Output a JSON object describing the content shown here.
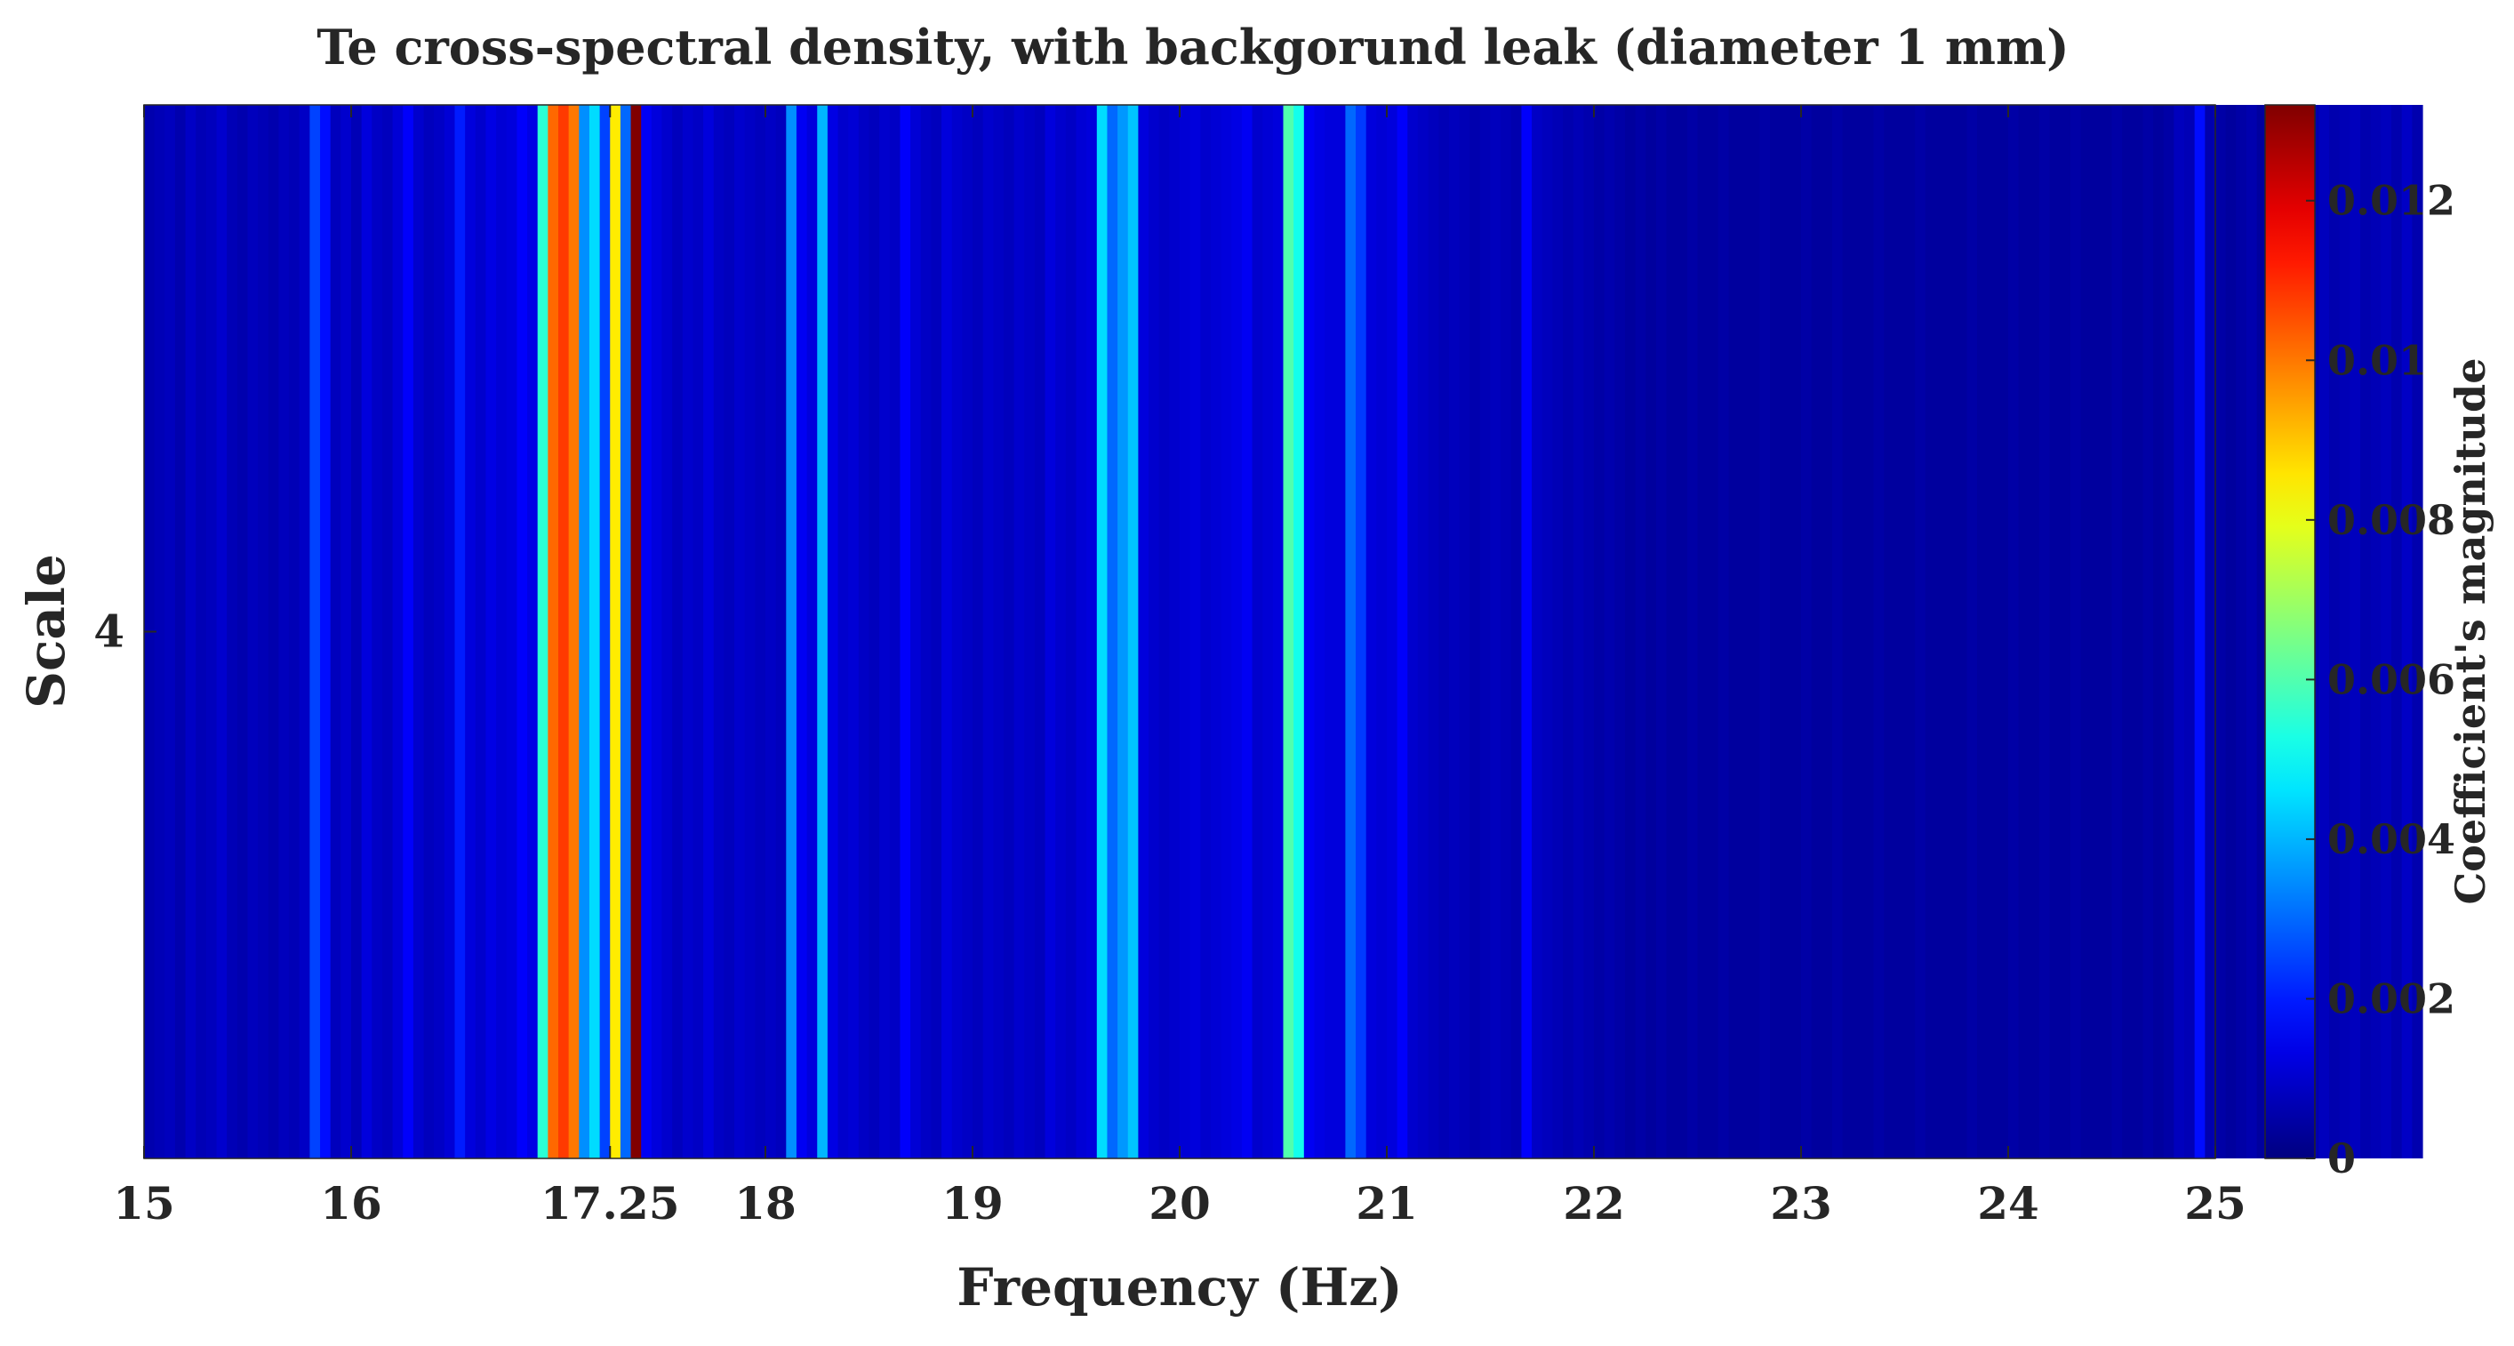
{
  "chart_data": {
    "type": "heatmap",
    "title": "Te cross-spectral density, with backgorund leak (diameter 1 mm)",
    "xlabel": "Frequency (Hz)",
    "ylabel": "Scale",
    "colorbar_label": "Coefficient's magnitude",
    "xlim": [
      15,
      25
    ],
    "x_ticks": [
      15,
      16,
      17.25,
      18,
      19,
      20,
      21,
      22,
      23,
      24,
      25
    ],
    "x_tick_labels": [
      "15",
      "16",
      "17.25",
      "18",
      "19",
      "20",
      "21",
      "22",
      "23",
      "24",
      "25"
    ],
    "y_tick_labels": [
      "4"
    ],
    "clim": [
      0,
      0.0132
    ],
    "colorbar_ticks": [
      0,
      0.002,
      0.004,
      0.006,
      0.008,
      0.01,
      0.012
    ],
    "colorbar_tick_labels": [
      "0",
      "0.002",
      "0.004",
      "0.006",
      "0.008",
      "0.01",
      "0.012"
    ],
    "colormap": "jet",
    "bin_width_hz": 0.05,
    "magnitudes": [
      0.0006,
      0.0007,
      0.0008,
      0.0006,
      0.0009,
      0.0007,
      0.0008,
      0.001,
      0.0007,
      0.0006,
      0.0008,
      0.0007,
      0.0006,
      0.0008,
      0.0007,
      0.0009,
      0.0025,
      0.0018,
      0.0008,
      0.001,
      0.0007,
      0.0012,
      0.0009,
      0.0008,
      0.0011,
      0.0016,
      0.001,
      0.0008,
      0.0009,
      0.0011,
      0.002,
      0.0012,
      0.001,
      0.0013,
      0.0011,
      0.0012,
      0.0016,
      0.0013,
      0.0055,
      0.0102,
      0.0108,
      0.01,
      0.0035,
      0.0045,
      0.0025,
      0.0085,
      0.003,
      0.0132,
      0.0015,
      0.0012,
      0.001,
      0.0008,
      0.001,
      0.0009,
      0.0012,
      0.0009,
      0.0008,
      0.001,
      0.0009,
      0.0008,
      0.0009,
      0.0008,
      0.0035,
      0.0015,
      0.0012,
      0.004,
      0.0013,
      0.001,
      0.0011,
      0.0009,
      0.0008,
      0.001,
      0.0009,
      0.0016,
      0.0011,
      0.0009,
      0.0008,
      0.0012,
      0.001,
      0.0009,
      0.0008,
      0.001,
      0.0009,
      0.0008,
      0.001,
      0.0009,
      0.0008,
      0.0012,
      0.001,
      0.0009,
      0.0011,
      0.0012,
      0.0045,
      0.003,
      0.0036,
      0.0042,
      0.0012,
      0.001,
      0.0009,
      0.001,
      0.0011,
      0.0012,
      0.001,
      0.0011,
      0.0012,
      0.0013,
      0.0015,
      0.001,
      0.0011,
      0.0012,
      0.006,
      0.0052,
      0.0015,
      0.0013,
      0.0012,
      0.0012,
      0.003,
      0.0024,
      0.0012,
      0.0011,
      0.0012,
      0.0016,
      0.001,
      0.0009,
      0.0008,
      0.0007,
      0.0008,
      0.0007,
      0.0006,
      0.0007,
      0.0008,
      0.0007,
      0.0006,
      0.0016,
      0.0009,
      0.0008,
      0.0007,
      0.0006,
      0.0007,
      0.0006,
      0.0005,
      0.0006,
      0.0005,
      0.0004,
      0.0005,
      0.0004,
      0.0005,
      0.0004,
      0.0004,
      0.0005,
      0.0004,
      0.0004,
      0.0005,
      0.0004,
      0.0004,
      0.0004,
      0.0005,
      0.0004,
      0.0004,
      0.0004,
      0.0005,
      0.0004,
      0.0004,
      0.0005,
      0.0004,
      0.0004,
      0.0004,
      0.0005,
      0.0004,
      0.0004,
      0.0004,
      0.0005,
      0.0004,
      0.0004,
      0.0004,
      0.0004,
      0.0005,
      0.0004,
      0.0004,
      0.0004,
      0.0005,
      0.0004,
      0.0004,
      0.0005,
      0.0004,
      0.0004,
      0.0005,
      0.0004,
      0.0004,
      0.0004,
      0.0005,
      0.0004,
      0.0004,
      0.0005,
      0.0004,
      0.0005,
      0.0008,
      0.0007,
      0.0018,
      0.0006,
      0.0005,
      0.0004,
      0.0005,
      0.0006,
      0.0004,
      0.0005,
      0.0006,
      0.0007,
      0.0005,
      0.0006,
      0.0008,
      0.0006,
      0.0007,
      0.0008,
      0.0006,
      0.0007,
      0.0008,
      0.0006,
      0.0009,
      0.0006
    ]
  }
}
